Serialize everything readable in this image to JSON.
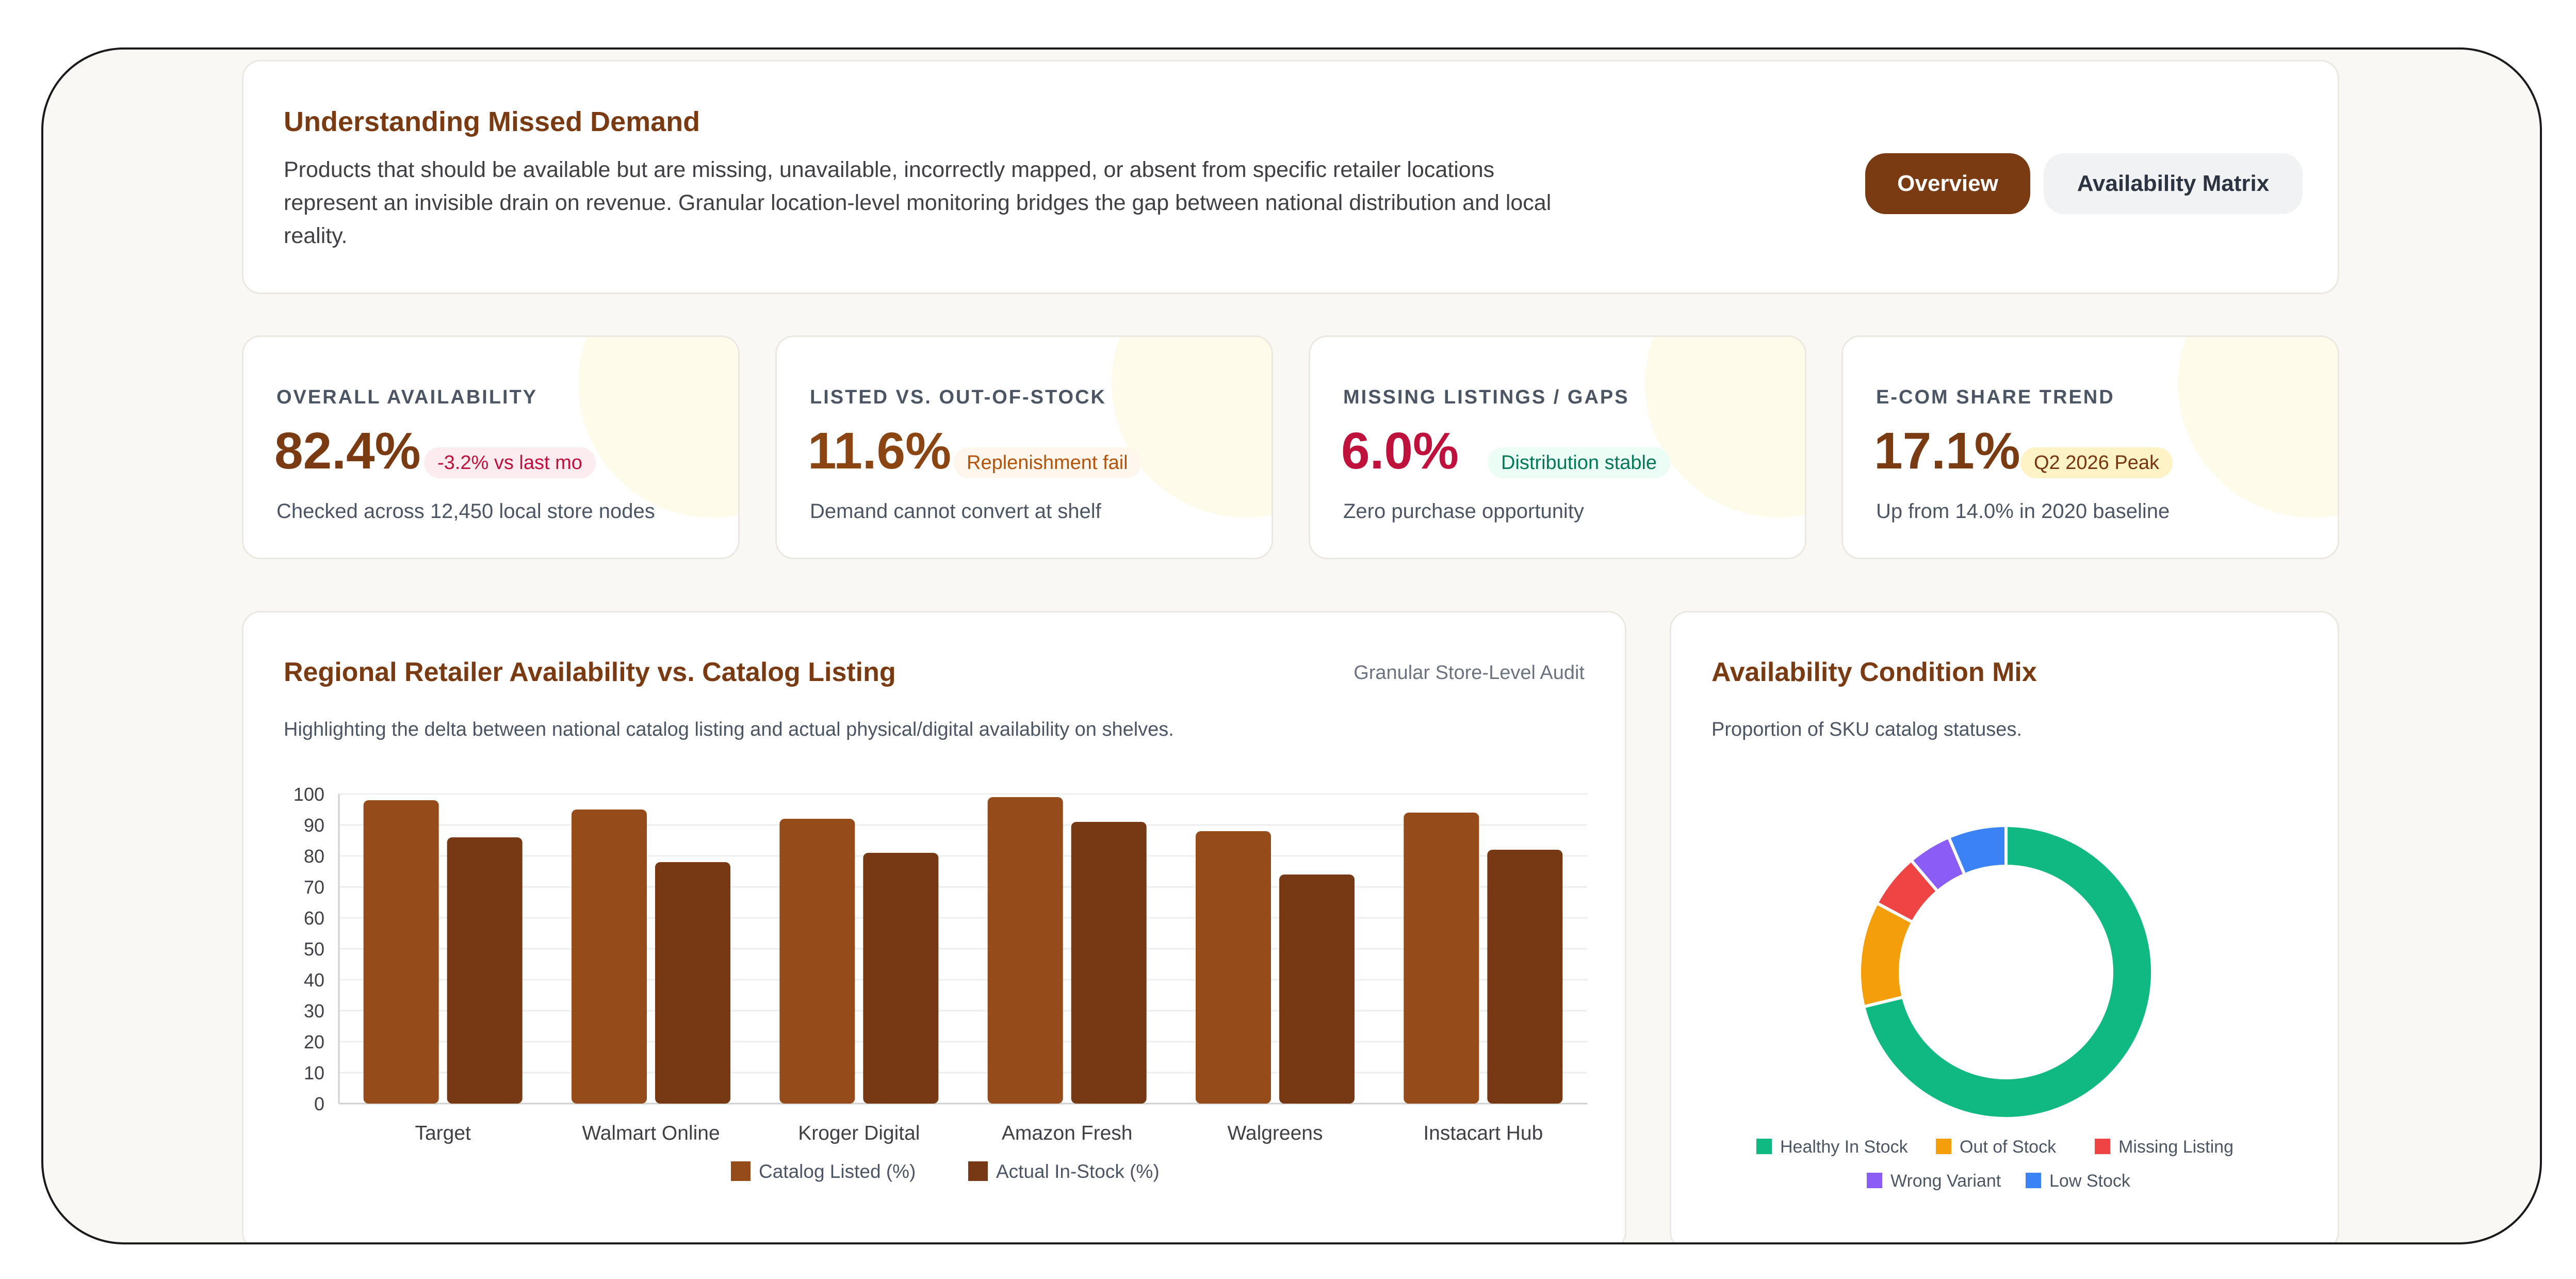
{
  "intro": {
    "title": "Understanding Missed Demand",
    "description": "Products that should be available but are missing, unavailable, incorrectly mapped, or absent from specific retailer locations represent an invisible drain on revenue. Granular location-level monitoring bridges the gap between national distribution and local reality.",
    "tabs": [
      "Overview",
      "Availability Matrix"
    ],
    "active_tab": "Overview"
  },
  "stats": [
    {
      "label": "OVERALL AVAILABILITY",
      "value": "82.4%",
      "badge": "-3.2% vs last mo",
      "sub": "Checked across 12,450 local store nodes",
      "value_color": "#7a3a12",
      "badge_bg": "#fdecef",
      "badge_color": "#be123c"
    },
    {
      "label": "LISTED VS. OUT-OF-STOCK",
      "value": "11.6%",
      "badge": "Replenishment fail",
      "sub": "Demand cannot convert at shelf",
      "value_color": "#8b4513",
      "badge_bg": "#fff7ed",
      "badge_color": "#b45309"
    },
    {
      "label": "MISSING LISTINGS / GAPS",
      "value": "6.0%",
      "badge": "Distribution stable",
      "sub": "Zero purchase opportunity",
      "value_color": "#be123c",
      "badge_bg": "#ecfdf5",
      "badge_color": "#047857"
    },
    {
      "label": "E-COM SHARE TREND",
      "value": "17.1%",
      "badge": "Q2 2026 Peak",
      "sub": "Up from 14.0% in 2020 baseline",
      "value_color": "#7a3a12",
      "badge_bg": "#fef3c7",
      "badge_color": "#78350f"
    }
  ],
  "bar_card": {
    "title": "Regional Retailer Availability vs. Catalog Listing",
    "note": "Granular Store-Level Audit",
    "subtitle": "Highlighting the delta between national catalog listing and actual physical/digital availability on shelves."
  },
  "donut_card": {
    "title": "Availability Condition Mix",
    "subtitle": "Proportion of SKU catalog statuses."
  },
  "chart_data": [
    {
      "type": "bar",
      "categories": [
        "Target",
        "Walmart Online",
        "Kroger Digital",
        "Amazon Fresh",
        "Walgreens",
        "Instacart Hub"
      ],
      "series": [
        {
          "name": "Catalog Listed (%)",
          "values": [
            98,
            95,
            92,
            99,
            88,
            94
          ],
          "color": "#964b1a"
        },
        {
          "name": "Actual In-Stock (%)",
          "values": [
            86,
            78,
            81,
            91,
            74,
            82
          ],
          "color": "#773914"
        }
      ],
      "ylim": [
        0,
        100
      ],
      "yticks": [
        0,
        10,
        20,
        30,
        40,
        50,
        60,
        70,
        80,
        90,
        100
      ],
      "legend": "bottom",
      "grid": true
    },
    {
      "type": "pie",
      "donut": true,
      "labels": [
        "Healthy In Stock",
        "Out of Stock",
        "Missing Listing",
        "Wrong Variant",
        "Low Stock"
      ],
      "values": [
        71.2,
        11.6,
        6.0,
        4.8,
        6.4
      ],
      "colors": [
        "#10b981",
        "#f59e0b",
        "#ef4444",
        "#8b5cf6",
        "#3b82f6"
      ],
      "legend": "bottom"
    }
  ]
}
